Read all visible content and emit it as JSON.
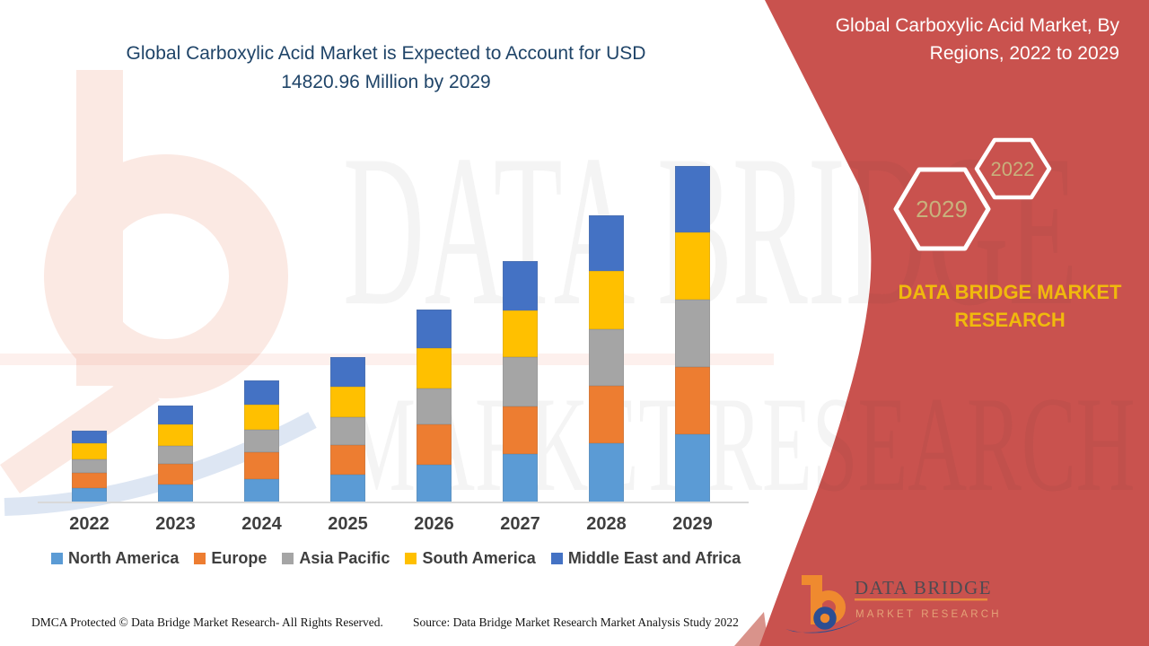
{
  "header": {
    "title_line1": "Global Carboxylic Acid Market is Expected to Account for USD",
    "title_line2": "14820.96 Million by 2029"
  },
  "side_panel": {
    "title_line1": "Global Carboxylic Acid Market, By",
    "title_line2": "Regions, 2022 to 2029",
    "badge_large_year": "2029",
    "badge_small_year": "2022",
    "brand_line1": "DATA BRIDGE MARKET",
    "brand_line2": "RESEARCH"
  },
  "watermark": {
    "line1": "DATA BRIDGE",
    "line2": "MARKET RESEARCH"
  },
  "logo": {
    "name1": "DATA BRIDGE",
    "name2": "MARKET RESEARCH"
  },
  "footer": {
    "dmca": "DMCA Protected © Data Bridge Market Research- All Rights Reserved.",
    "source": "Source: Data Bridge Market Research Market Analysis Study 2022"
  },
  "colors": {
    "panel_red": "#C9524E",
    "title_navy": "#1F4468",
    "brand_yellow": "#F0B90D",
    "badge_tan": "#C8B17C",
    "axis_text": "#3F3F3F"
  },
  "chart_data": {
    "type": "bar",
    "stacked": true,
    "title": "Global Carboxylic Acid Market is Expected to Account for USD 14820.96 Million by 2029",
    "unit": "USD Million",
    "note": "No y-axis shown; segment values estimated from pixel heights; 2029 total anchored to 14820.96 from title",
    "legend_position": "bottom",
    "grid": false,
    "ylim": [
      0,
      15000
    ],
    "categories": [
      "2022",
      "2023",
      "2024",
      "2025",
      "2026",
      "2027",
      "2028",
      "2029"
    ],
    "series": [
      {
        "name": "North America",
        "color": "#5B9BD5",
        "values": [
          644,
          779,
          1028,
          1225,
          1672,
          2134,
          2593,
          2988.96
        ]
      },
      {
        "name": "Europe",
        "color": "#ED7D31",
        "values": [
          660,
          921,
          1186,
          1288,
          1778,
          2095,
          2545,
          2964
        ]
      },
      {
        "name": "Asia Pacific",
        "color": "#A5A5A5",
        "values": [
          605,
          790,
          988,
          1253,
          1581,
          2162,
          2502,
          2964
        ]
      },
      {
        "name": "South America",
        "color": "#FFC000",
        "values": [
          684,
          937,
          1091,
          1316,
          1755,
          2079,
          2541,
          2980
        ]
      },
      {
        "name": "Middle East and Africa",
        "color": "#4472C4",
        "values": [
          553,
          858,
          1083,
          1320,
          1700,
          2150,
          2466,
          2924
        ]
      }
    ],
    "estimated_totals": [
      3146,
      4285,
      5376,
      6402,
      8486,
      10620,
      12647,
      14820.96
    ]
  }
}
